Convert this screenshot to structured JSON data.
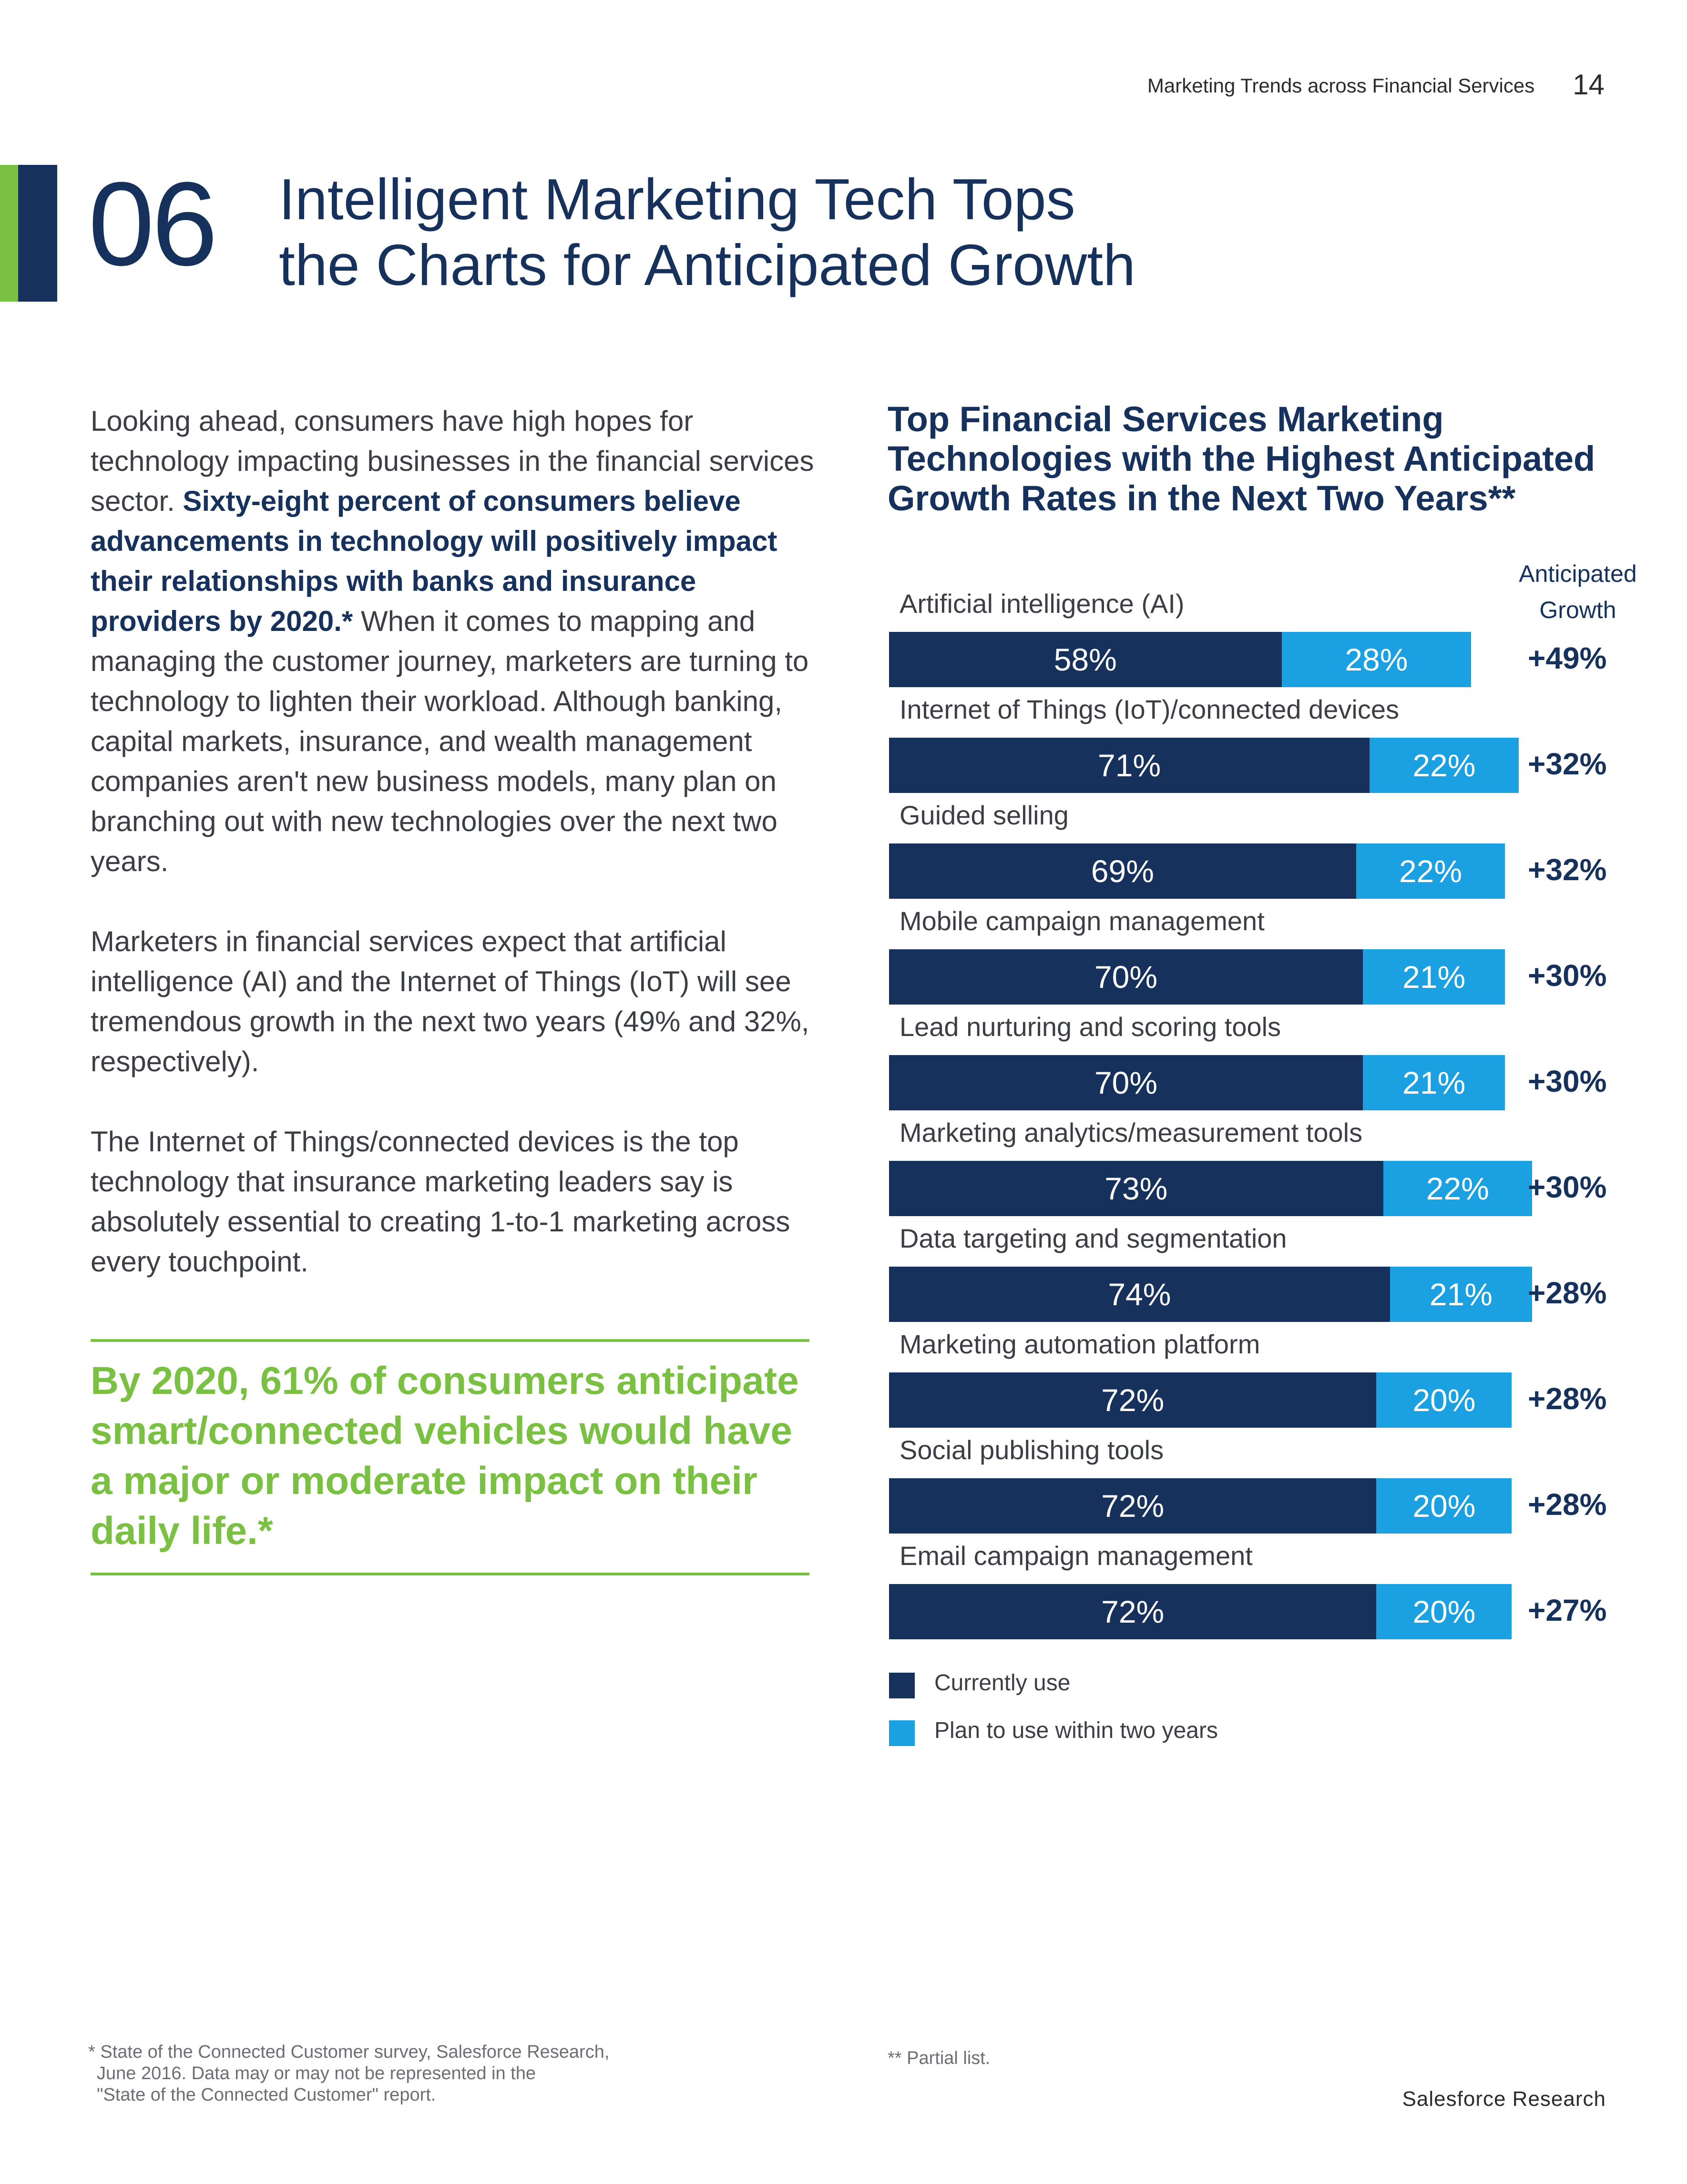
{
  "header": {
    "running_title": "Marketing Trends across Financial Services",
    "page_number": "14"
  },
  "section": {
    "number": "06",
    "title_line1": "Intelligent Marketing Tech Tops",
    "title_line2": "the Charts for Anticipated Growth"
  },
  "body": {
    "p1_intro": "Looking ahead, consumers have high hopes for technology impacting businesses in the financial services sector. ",
    "p1_bold": "Sixty-eight percent of consumers believe advancements in technology will positively impact their relationships with banks and insurance providers by 2020.*",
    "p1_rest": " When it comes to mapping and managing the customer journey, marketers are turning to technology to lighten their workload. Although banking, capital markets, insurance, and wealth management companies aren't new business models, many plan on branching out with new technologies over the next two years.",
    "p2": "Marketers in financial services expect that artificial intelligence (AI) and the Internet of Things (IoT) will see tremendous growth in the next two years (49% and 32%, respectively).",
    "p3": "The Internet of Things/connected devices is the top technology that insurance marketing leaders say is absolutely essential to creating 1-to-1 marketing across every touchpoint."
  },
  "callout": "By 2020, 61% of consumers anticipate smart/connected vehicles would have a major or moderate impact on their daily life.*",
  "chart_data": {
    "type": "bar",
    "orientation": "horizontal",
    "stacked": true,
    "title": "Top Financial Services Marketing Technologies with the Highest Anticipated Growth Rates in the Next Two Years**",
    "growth_header": [
      "Anticipated",
      "Growth"
    ],
    "categories": [
      "Artificial intelligence (AI)",
      "Internet of Things (IoT)/connected devices",
      "Guided selling",
      "Mobile campaign management",
      "Lead nurturing and scoring tools",
      "Marketing analytics/measurement tools",
      "Data targeting and segmentation",
      "Marketing automation platform",
      "Social publishing tools",
      "Email campaign management"
    ],
    "series": [
      {
        "name": "Currently use",
        "values": [
          58,
          71,
          69,
          70,
          70,
          73,
          74,
          72,
          72,
          72
        ],
        "color": "#16325c"
      },
      {
        "name": "Plan to use within two years",
        "values": [
          28,
          22,
          22,
          21,
          21,
          22,
          21,
          20,
          20,
          20
        ],
        "color": "#1ba1e2"
      }
    ],
    "anticipated_growth": [
      "+49%",
      "+32%",
      "+32%",
      "+30%",
      "+30%",
      "+30%",
      "+28%",
      "+28%",
      "+28%",
      "+27%"
    ],
    "legend_position": "bottom-left"
  },
  "footnotes": {
    "left_line1": "* State of the Connected Customer survey, Salesforce Research,",
    "left_line2": "June 2016. Data  may or may not be represented in the",
    "left_line3": "\"State of the Connected Customer\" report.",
    "right": "** Partial list."
  },
  "footer": {
    "brand": "Salesforce Research"
  }
}
